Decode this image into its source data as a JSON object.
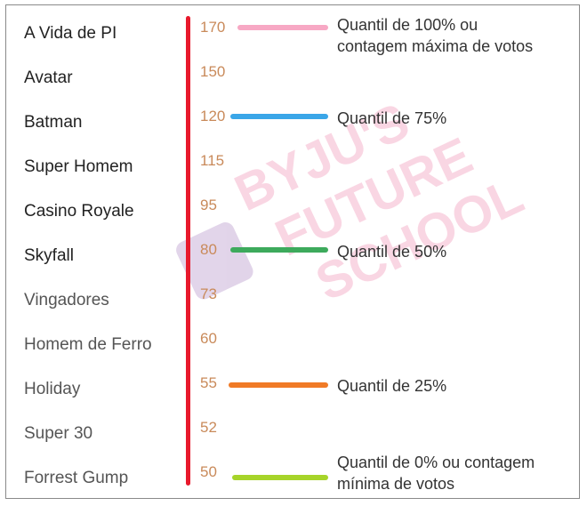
{
  "movies": [
    "A Vida de PI",
    "Avatar",
    "Batman",
    "Super Homem",
    "Casino Royale",
    "Skyfall",
    "Vingadores",
    "Homem de Ferro",
    "Holiday",
    "Super 30",
    "Forrest Gump"
  ],
  "vote_counts": [
    "170",
    "150",
    "120",
    "115",
    "95",
    "80",
    "73",
    "60",
    "55",
    "52",
    "50"
  ],
  "quantiles": {
    "q100_line1": "Quantil de 100% ou",
    "q100_line2": "contagem máxima de votos",
    "q75": "Quantil de 75%",
    "q50": "Quantil de 50%",
    "q25": "Quantil de 25%",
    "q0_line1": "Quantil de 0% ou contagem",
    "q0_line2": "mínima de votos"
  },
  "colors": {
    "axis": "#e8192c",
    "q100": "#f7a8c4",
    "q75": "#3aa6e8",
    "q50": "#3daa5c",
    "q25": "#f07a26",
    "q0": "#a6d42a"
  },
  "watermark": {
    "line1": "BYJU'S",
    "line2": "FUTURE",
    "line3": "SCHOOL"
  }
}
